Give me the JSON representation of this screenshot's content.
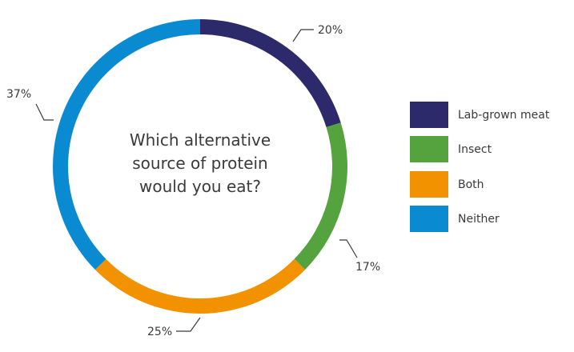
{
  "chart_data": {
    "type": "pie",
    "donut": true,
    "center_title": [
      "Which alternative",
      "source of protein",
      "would you eat?"
    ],
    "categories": [
      "Lab-grown meat",
      "Insect",
      "Both",
      "Neither"
    ],
    "values": [
      20,
      17,
      25,
      37
    ],
    "data_labels": [
      "20%",
      "17%",
      "25%",
      "37%"
    ],
    "colors": [
      "#2d2a6b",
      "#55a33f",
      "#f39200",
      "#0a8ad1"
    ],
    "legend_position": "right"
  }
}
